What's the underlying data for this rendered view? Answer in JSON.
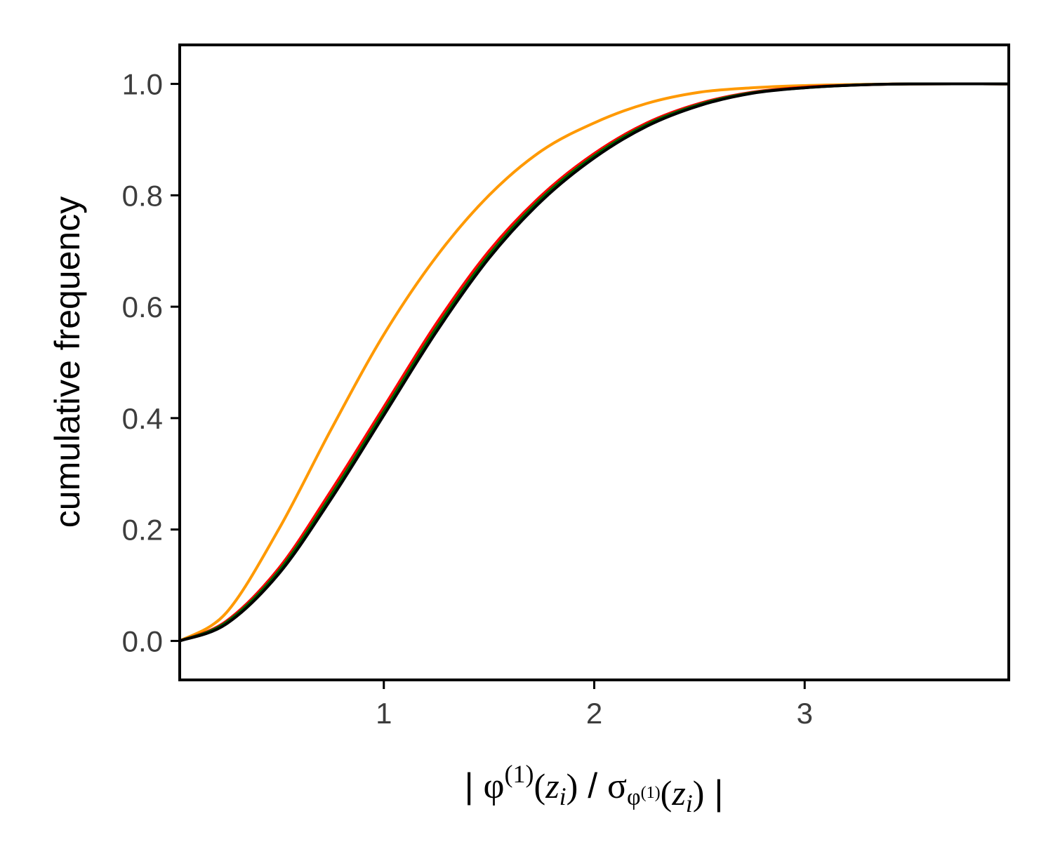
{
  "chart_data": {
    "type": "line",
    "title": "",
    "ylabel": "cumulative frequency",
    "xlabel": {
      "bar_left": "| ",
      "phi": "φ",
      "sup": "(1)",
      "z_open": "(",
      "z": "z",
      "i": "i",
      "z_close": ")",
      "slash": " / ",
      "sigma": "σ",
      "sigma_sub_phi": "φ",
      "sigma_sub_sup": "(1)",
      "bar_right": " |"
    },
    "xlim": [
      0.03,
      3.97
    ],
    "ylim": [
      -0.07,
      1.07
    ],
    "xticks": [
      1,
      2,
      3
    ],
    "xtick_labels": [
      "1",
      "2",
      "3"
    ],
    "yticks": [
      0.0,
      0.2,
      0.4,
      0.6,
      0.8,
      1.0
    ],
    "ytick_labels": [
      "0.0",
      "0.2",
      "0.4",
      "0.6",
      "0.8",
      "1.0"
    ],
    "grid": false,
    "legend": "none",
    "series": [
      {
        "color": "#ff9900",
        "x": [
          0.03,
          0.25,
          0.5,
          0.75,
          1.0,
          1.25,
          1.5,
          1.75,
          2.0,
          2.25,
          2.5,
          2.75,
          3.0,
          3.25,
          3.5,
          3.97
        ],
        "y": [
          0.0,
          0.05,
          0.2,
          0.38,
          0.55,
          0.69,
          0.8,
          0.88,
          0.93,
          0.965,
          0.985,
          0.993,
          0.997,
          0.999,
          1.0,
          1.0
        ]
      },
      {
        "color": "#ff0000",
        "x": [
          0.03,
          0.25,
          0.5,
          0.75,
          1.0,
          1.25,
          1.5,
          1.75,
          2.0,
          2.25,
          2.5,
          2.75,
          3.0,
          3.25,
          3.5,
          3.97
        ],
        "y": [
          0.0,
          0.035,
          0.13,
          0.27,
          0.42,
          0.57,
          0.7,
          0.8,
          0.875,
          0.93,
          0.965,
          0.985,
          0.994,
          0.998,
          1.0,
          1.0
        ]
      },
      {
        "color": "#006400",
        "x": [
          0.03,
          0.25,
          0.5,
          0.75,
          1.0,
          1.25,
          1.5,
          1.75,
          2.0,
          2.25,
          2.5,
          2.75,
          3.0,
          3.25,
          3.5,
          3.97
        ],
        "y": [
          0.0,
          0.033,
          0.125,
          0.262,
          0.412,
          0.562,
          0.693,
          0.795,
          0.871,
          0.927,
          0.963,
          0.984,
          0.993,
          0.998,
          1.0,
          1.0
        ]
      },
      {
        "color": "#000000",
        "x": [
          0.03,
          0.25,
          0.5,
          0.75,
          1.0,
          1.25,
          1.5,
          1.75,
          2.0,
          2.25,
          2.5,
          2.75,
          3.0,
          3.25,
          3.5,
          3.97
        ],
        "y": [
          0.0,
          0.03,
          0.12,
          0.255,
          0.405,
          0.555,
          0.687,
          0.79,
          0.867,
          0.924,
          0.961,
          0.983,
          0.993,
          0.998,
          1.0,
          1.0
        ]
      }
    ]
  }
}
